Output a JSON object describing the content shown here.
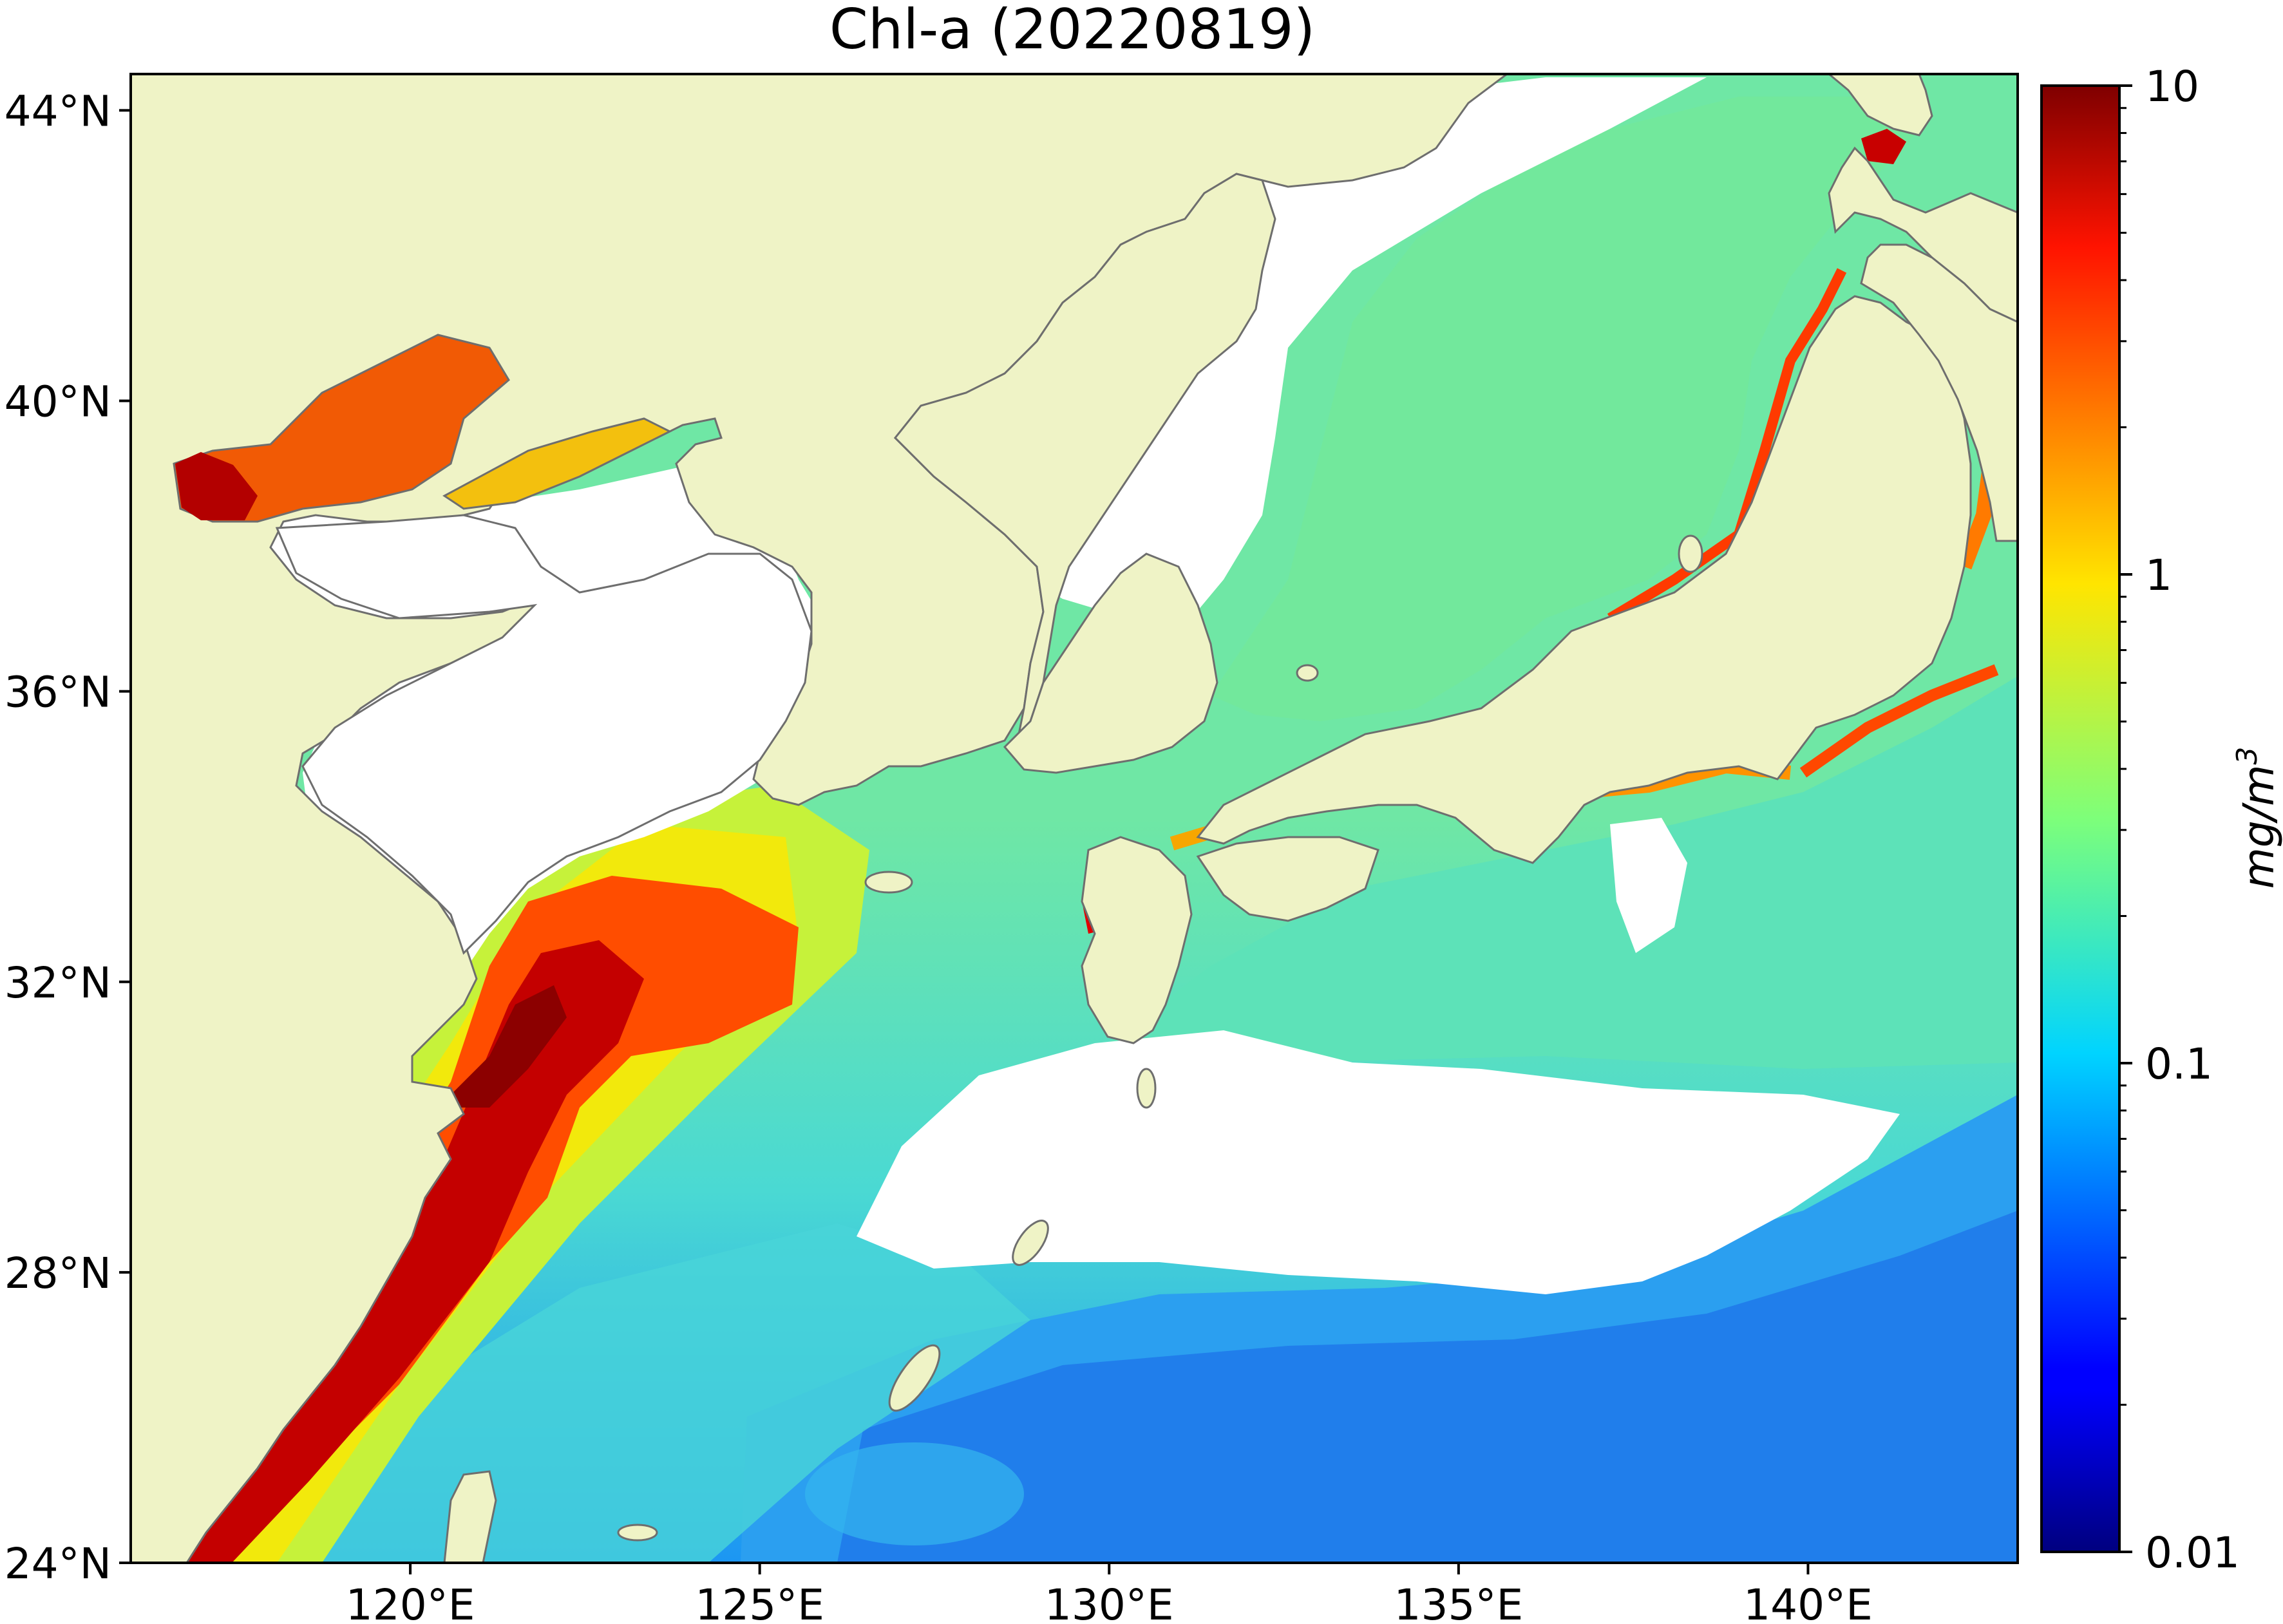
{
  "title": "Chl-a (20220819)",
  "map": {
    "lon_range": [
      116.0,
      143.0
    ],
    "lat_range": [
      24.0,
      44.5
    ],
    "lon_ticks": [
      {
        "value": 120,
        "label": "120°E"
      },
      {
        "value": 125,
        "label": "125°E"
      },
      {
        "value": 130,
        "label": "130°E"
      },
      {
        "value": 135,
        "label": "135°E"
      },
      {
        "value": 140,
        "label": "140°E"
      }
    ],
    "lat_ticks": [
      {
        "value": 24,
        "label": "24°N"
      },
      {
        "value": 28,
        "label": "28°N"
      },
      {
        "value": 32,
        "label": "32°N"
      },
      {
        "value": 36,
        "label": "36°N"
      },
      {
        "value": 40,
        "label": "40°N"
      },
      {
        "value": 44,
        "label": "44°N"
      }
    ],
    "land_color": "#eff3c6",
    "no_data_color": "#ffffff",
    "coastline_color": "#6e6e6e"
  },
  "colorbar": {
    "colormap": "jet",
    "scale": "log",
    "range": [
      0.01,
      10
    ],
    "ticks": [
      {
        "value": 10,
        "label": "10"
      },
      {
        "value": 1,
        "label": "1"
      },
      {
        "value": 0.1,
        "label": "0.1"
      },
      {
        "value": 0.01,
        "label": "0.01"
      }
    ],
    "unit_label": "mg/m",
    "unit_exponent": "3"
  }
}
